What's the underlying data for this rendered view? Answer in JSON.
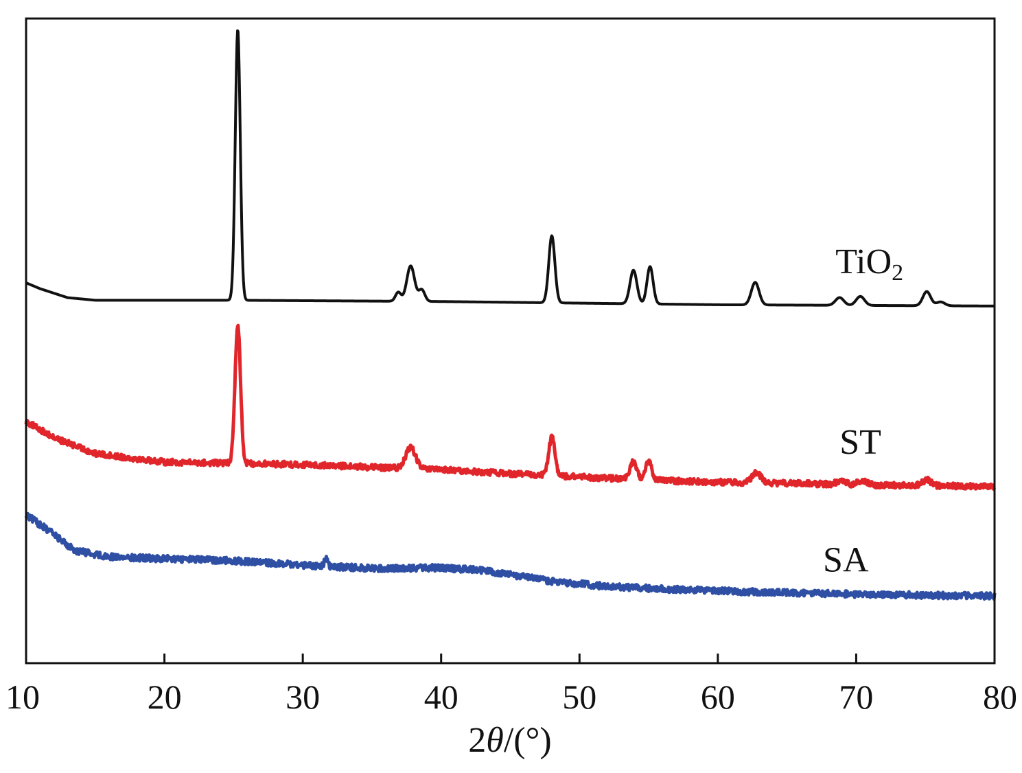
{
  "chart_data": {
    "type": "line",
    "title": "",
    "xlabel_prefix": "2",
    "xlabel_symbol": "θ",
    "xlabel_suffix": "/(°)",
    "xlabel": "2θ/(°)",
    "ylabel": "",
    "xlim": [
      10,
      80
    ],
    "ylim": [
      0,
      100
    ],
    "x_ticks": [
      10,
      20,
      30,
      40,
      50,
      60,
      70,
      80
    ],
    "x_tick_labels": [
      "10",
      "20",
      "30",
      "40",
      "50",
      "60",
      "70",
      "80"
    ],
    "grid": false,
    "series": [
      {
        "name": "TiO2",
        "label_main": "TiO",
        "label_sub": "2",
        "color": "#111111",
        "label_x": 68.5,
        "label_y": 60.5,
        "noise": 0.0,
        "baseline": [
          [
            10,
            59
          ],
          [
            11,
            58.1
          ],
          [
            13,
            56.7
          ],
          [
            15,
            56.3
          ],
          [
            25,
            56.3
          ],
          [
            40,
            56.1
          ],
          [
            60,
            55.6
          ],
          [
            80,
            55.4
          ]
        ],
        "peaks": [
          {
            "center": 25.3,
            "height": 42,
            "width": 0.18
          },
          {
            "center": 36.9,
            "height": 1.4,
            "width": 0.2
          },
          {
            "center": 37.8,
            "height": 5.5,
            "width": 0.28
          },
          {
            "center": 38.6,
            "height": 1.8,
            "width": 0.22
          },
          {
            "center": 48.0,
            "height": 10.4,
            "width": 0.22
          },
          {
            "center": 53.9,
            "height": 5.2,
            "width": 0.25
          },
          {
            "center": 55.1,
            "height": 5.8,
            "width": 0.22
          },
          {
            "center": 62.7,
            "height": 3.5,
            "width": 0.28
          },
          {
            "center": 68.8,
            "height": 1.2,
            "width": 0.3
          },
          {
            "center": 70.3,
            "height": 1.4,
            "width": 0.3
          },
          {
            "center": 75.1,
            "height": 2.2,
            "width": 0.28
          },
          {
            "center": 76.1,
            "height": 0.6,
            "width": 0.3
          }
        ]
      },
      {
        "name": "ST",
        "label_main": "ST",
        "label_sub": "",
        "color": "#e0262b",
        "label_x": 68.8,
        "label_y": 32.5,
        "noise": 0.45,
        "baseline": [
          [
            10,
            37.5
          ],
          [
            12,
            35
          ],
          [
            15,
            32.5
          ],
          [
            20,
            31.2
          ],
          [
            25,
            31
          ],
          [
            30,
            30.8
          ],
          [
            35,
            30.4
          ],
          [
            40,
            30
          ],
          [
            45,
            29.4
          ],
          [
            50,
            28.9
          ],
          [
            55,
            28.4
          ],
          [
            60,
            28.1
          ],
          [
            70,
            27.7
          ],
          [
            80,
            27.4
          ]
        ],
        "peaks": [
          {
            "center": 25.3,
            "height": 21.5,
            "width": 0.2
          },
          {
            "center": 37.8,
            "height": 3.3,
            "width": 0.35
          },
          {
            "center": 48.0,
            "height": 6.0,
            "width": 0.22
          },
          {
            "center": 53.9,
            "height": 2.7,
            "width": 0.25
          },
          {
            "center": 55.0,
            "height": 2.9,
            "width": 0.22
          },
          {
            "center": 62.8,
            "height": 1.6,
            "width": 0.3
          },
          {
            "center": 68.9,
            "height": 0.6,
            "width": 0.3
          },
          {
            "center": 70.4,
            "height": 0.7,
            "width": 0.3
          },
          {
            "center": 75.1,
            "height": 0.9,
            "width": 0.3
          }
        ]
      },
      {
        "name": "SA",
        "label_main": "SA",
        "label_sub": "",
        "color": "#2e4fa3",
        "label_x": 67.6,
        "label_y": 14.2,
        "noise": 0.5,
        "baseline": [
          [
            10,
            23
          ],
          [
            12,
            20
          ],
          [
            13.5,
            17.5
          ],
          [
            16,
            16.5
          ],
          [
            20,
            16.2
          ],
          [
            25,
            15.9
          ],
          [
            30,
            15.2
          ],
          [
            35,
            14.7
          ],
          [
            40,
            14.8
          ],
          [
            43,
            14.4
          ],
          [
            45,
            13.7
          ],
          [
            48,
            12.7
          ],
          [
            52,
            11.9
          ],
          [
            55,
            11.6
          ],
          [
            60,
            11.2
          ],
          [
            70,
            10.7
          ],
          [
            80,
            10.4
          ]
        ],
        "peaks": [
          {
            "center": 31.7,
            "height": 1.3,
            "width": 0.12
          }
        ]
      }
    ]
  }
}
